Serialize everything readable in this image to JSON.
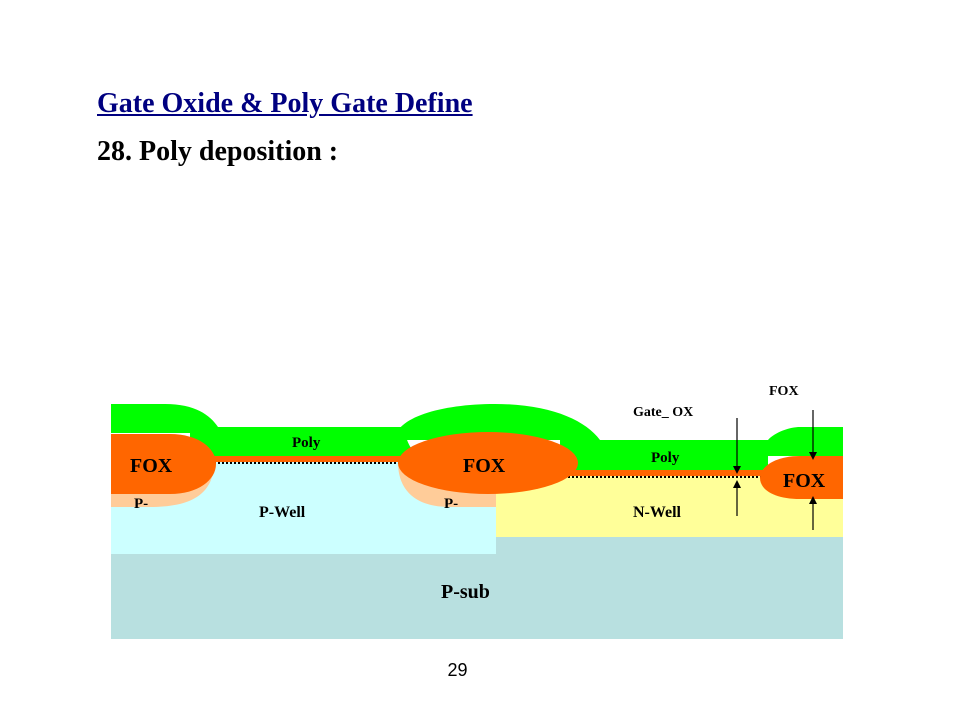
{
  "slide": {
    "title": "Gate Oxide & Poly Gate Define",
    "subtitle": "28. Poly deposition :",
    "page_number": "29"
  },
  "diagram": {
    "labels": {
      "fox_left": "FOX",
      "fox_middle": "FOX",
      "fox_right": "FOX",
      "fox_callout": "FOX",
      "poly_left": "Poly",
      "poly_right": "Poly",
      "gate_ox": "Gate_ OX",
      "p_minus_left": "P-",
      "p_minus_middle": "P-",
      "p_well": "P-Well",
      "n_well": "N-Well",
      "p_sub": "P-sub"
    },
    "colors": {
      "poly": "#00ff00",
      "fox": "#ff6600",
      "p_minus": "#ffcc99",
      "p_well": "#ccffff",
      "n_well": "#ffff99",
      "p_sub": "#b8e0e0",
      "title": "#000080"
    }
  }
}
